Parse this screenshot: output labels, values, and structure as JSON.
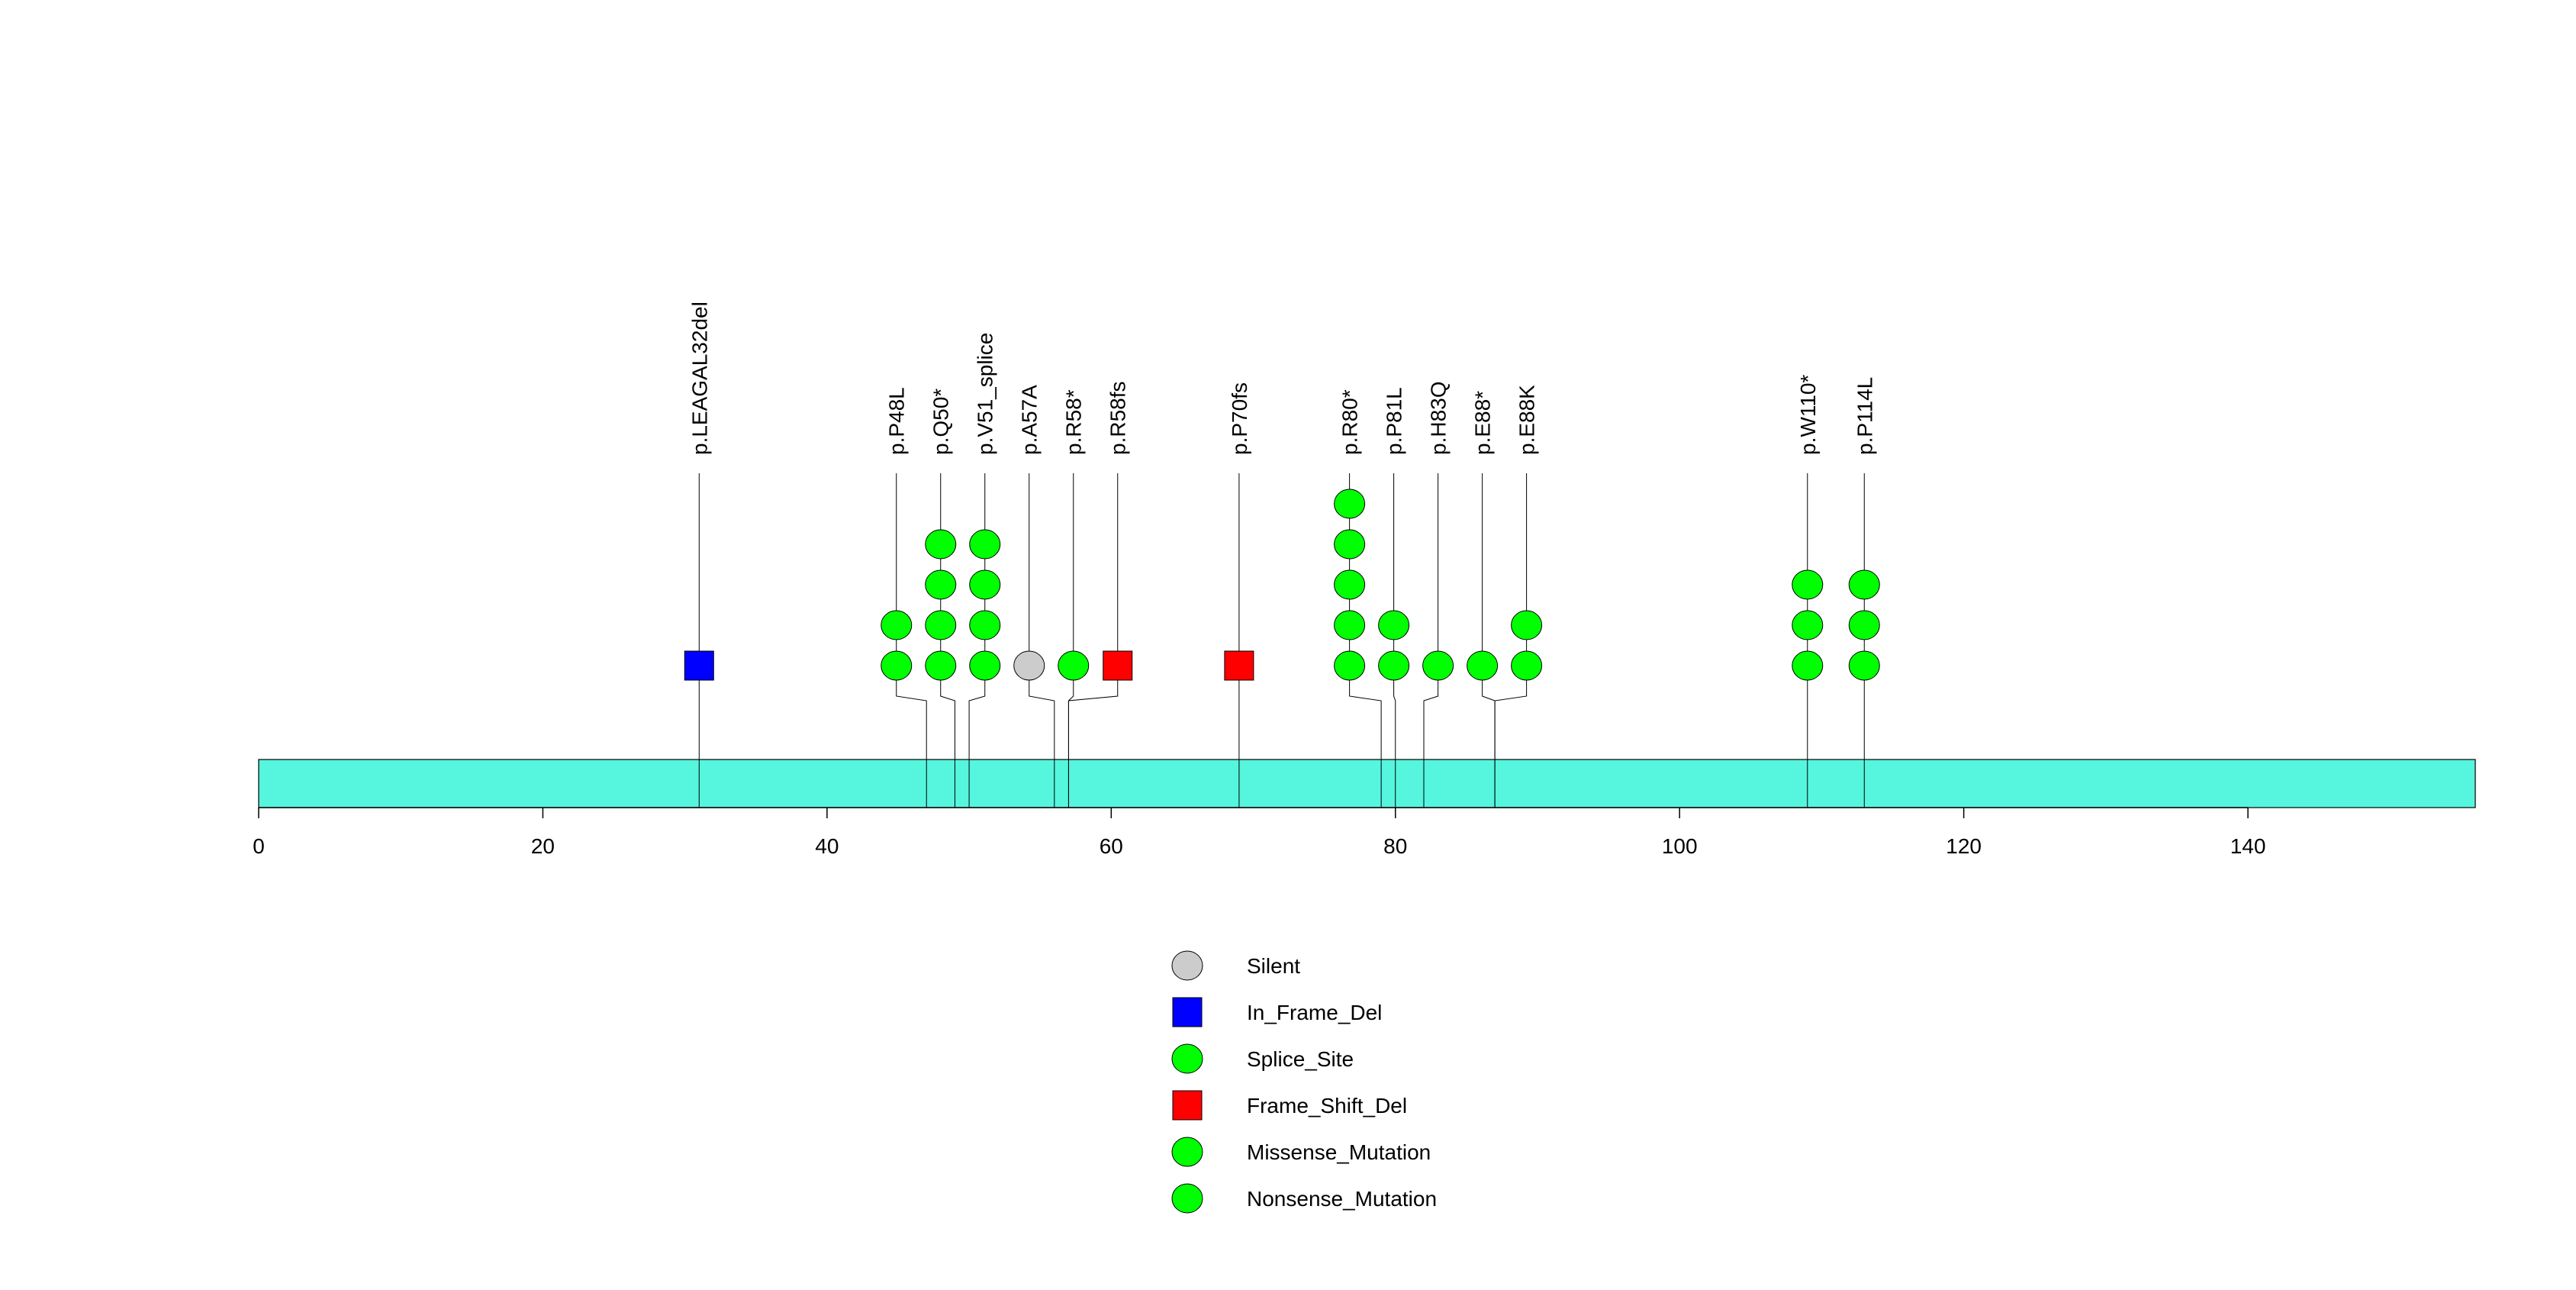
{
  "chart_data": {
    "type": "lollipop",
    "protein_length": 156,
    "x_axis": {
      "range": [
        0,
        156
      ],
      "ticks": [
        0,
        20,
        40,
        60,
        80,
        100,
        120,
        140
      ],
      "tick_labels": [
        "0",
        "20",
        "40",
        "60",
        "80",
        "100",
        "120",
        "140"
      ]
    },
    "domain_bar": {
      "start": 0,
      "end": 156,
      "color": "#55f5de"
    },
    "mutations": [
      {
        "label": "p.LEAGAL32del",
        "position": 31,
        "count": 1,
        "type": "In_Frame_Del",
        "shape": "square"
      },
      {
        "label": "p.P48L",
        "position": 47,
        "count": 2,
        "type": "Missense_Mutation",
        "shape": "circle"
      },
      {
        "label": "p.Q50*",
        "position": 49,
        "count": 4,
        "type": "Nonsense_Mutation",
        "shape": "circle"
      },
      {
        "label": "p.V51_splice",
        "position": 50,
        "count": 4,
        "type": "Splice_Site",
        "shape": "circle"
      },
      {
        "label": "p.A57A",
        "position": 56,
        "count": 1,
        "type": "Silent",
        "shape": "circle"
      },
      {
        "label": "p.R58*",
        "position": 57,
        "count": 1,
        "type": "Nonsense_Mutation",
        "shape": "circle"
      },
      {
        "label": "p.R58fs",
        "position": 57,
        "count": 1,
        "type": "Frame_Shift_Del",
        "shape": "square"
      },
      {
        "label": "p.P70fs",
        "position": 69,
        "count": 1,
        "type": "Frame_Shift_Del",
        "shape": "square"
      },
      {
        "label": "p.R80*",
        "position": 79,
        "count": 5,
        "type": "Nonsense_Mutation",
        "shape": "circle"
      },
      {
        "label": "p.P81L",
        "position": 80,
        "count": 2,
        "type": "Missense_Mutation",
        "shape": "circle"
      },
      {
        "label": "p.H83Q",
        "position": 82,
        "count": 1,
        "type": "Missense_Mutation",
        "shape": "circle"
      },
      {
        "label": "p.E88*",
        "position": 87,
        "count": 1,
        "type": "Nonsense_Mutation",
        "shape": "circle"
      },
      {
        "label": "p.E88K",
        "position": 87,
        "count": 2,
        "type": "Missense_Mutation",
        "shape": "circle"
      },
      {
        "label": "p.W110*",
        "position": 109,
        "count": 3,
        "type": "Nonsense_Mutation",
        "shape": "circle"
      },
      {
        "label": "p.P114L",
        "position": 113,
        "count": 3,
        "type": "Missense_Mutation",
        "shape": "circle"
      }
    ],
    "legend": [
      {
        "label": "Silent",
        "shape": "circle",
        "color": "#cccccc"
      },
      {
        "label": "In_Frame_Del",
        "shape": "square",
        "color": "#0000ff"
      },
      {
        "label": "Splice_Site",
        "shape": "circle",
        "color": "#00ff00"
      },
      {
        "label": "Frame_Shift_Del",
        "shape": "square",
        "color": "#ff0000"
      },
      {
        "label": "Missense_Mutation",
        "shape": "circle",
        "color": "#00ff00"
      },
      {
        "label": "Nonsense_Mutation",
        "shape": "circle",
        "color": "#00ff00"
      }
    ]
  }
}
